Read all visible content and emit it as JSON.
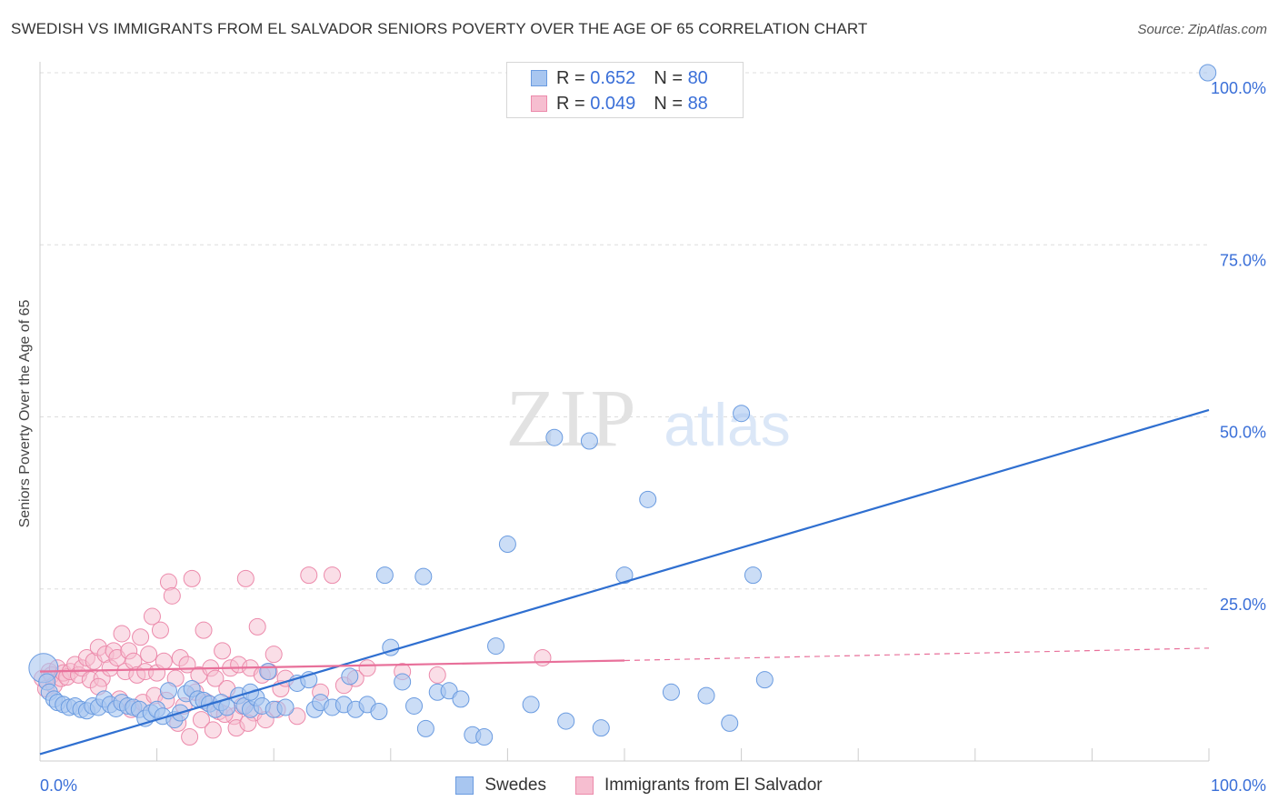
{
  "title": "SWEDISH VS IMMIGRANTS FROM EL SALVADOR SENIORS POVERTY OVER THE AGE OF 65 CORRELATION CHART",
  "source": "Source: ZipAtlas.com",
  "watermark": {
    "zip": "ZIP",
    "atlas": "atlas"
  },
  "legend_top": {
    "rows": [
      {
        "r_label": "R =",
        "r_value": "0.652",
        "n_label": "N =",
        "n_value": "80"
      },
      {
        "r_label": "R =",
        "r_value": "0.049",
        "n_label": "N =",
        "n_value": "88"
      }
    ]
  },
  "legend_bottom": {
    "swedes": "Swedes",
    "salvador": "Immigrants from El Salvador"
  },
  "colors": {
    "swedes_fill": "#a8c6f0",
    "swedes_stroke": "#6a9be0",
    "swedes_line": "#2f6fd0",
    "salvador_fill": "#f6bed0",
    "salvador_stroke": "#ec8aab",
    "salvador_line": "#e8709a",
    "tick_label": "#3a6fd8",
    "grid": "#dddddd"
  },
  "chart_data": {
    "type": "scatter",
    "title": "SWEDISH VS IMMIGRANTS FROM EL SALVADOR SENIORS POVERTY OVER THE AGE OF 65 CORRELATION CHART",
    "xlabel": "",
    "ylabel": "Seniors Poverty Over the Age of 65",
    "xlim": [
      0,
      100
    ],
    "ylim": [
      0,
      100
    ],
    "x_tick_labels": [
      "0.0%",
      "100.0%"
    ],
    "y_ticks": [
      25,
      50,
      75,
      100
    ],
    "y_tick_labels": [
      "25.0%",
      "50.0%",
      "75.0%",
      "100.0%"
    ],
    "series": [
      {
        "name": "Swedes",
        "r": 0.652,
        "n": 80,
        "trend": {
          "x": [
            0,
            100
          ],
          "y": [
            1,
            51
          ]
        },
        "points": [
          [
            0.3,
            13.5
          ],
          [
            0.6,
            11.5
          ],
          [
            0.8,
            10
          ],
          [
            1.2,
            9
          ],
          [
            1.5,
            8.5
          ],
          [
            2,
            8.2
          ],
          [
            2.5,
            7.8
          ],
          [
            3,
            8
          ],
          [
            3.5,
            7.5
          ],
          [
            4,
            7.3
          ],
          [
            4.5,
            8
          ],
          [
            5,
            7.8
          ],
          [
            5.5,
            9
          ],
          [
            6,
            8.2
          ],
          [
            6.5,
            7.6
          ],
          [
            7,
            8.5
          ],
          [
            7.5,
            8
          ],
          [
            8,
            7.8
          ],
          [
            8.5,
            7.5
          ],
          [
            9,
            6.2
          ],
          [
            9.5,
            7
          ],
          [
            10,
            7.5
          ],
          [
            10.5,
            6.5
          ],
          [
            11,
            10.2
          ],
          [
            11.5,
            6
          ],
          [
            12,
            7
          ],
          [
            12.5,
            9.8
          ],
          [
            13,
            10.5
          ],
          [
            13.5,
            9
          ],
          [
            14,
            8.8
          ],
          [
            14.5,
            8.3
          ],
          [
            15,
            7.5
          ],
          [
            15.5,
            8.5
          ],
          [
            16,
            7.8
          ],
          [
            17,
            9.5
          ],
          [
            17.5,
            8
          ],
          [
            18,
            7.5
          ],
          [
            18.5,
            9.2
          ],
          [
            19,
            8
          ],
          [
            19.5,
            13
          ],
          [
            20,
            7.5
          ],
          [
            21,
            7.8
          ],
          [
            22,
            11.3
          ],
          [
            23,
            11.8
          ],
          [
            23.5,
            7.5
          ],
          [
            24,
            8.5
          ],
          [
            25,
            7.8
          ],
          [
            26,
            8.2
          ],
          [
            26.5,
            12.3
          ],
          [
            27,
            7.5
          ],
          [
            28,
            8.2
          ],
          [
            29,
            7.2
          ],
          [
            30,
            16.5
          ],
          [
            31,
            11.5
          ],
          [
            32,
            8
          ],
          [
            33,
            4.7
          ],
          [
            34,
            10
          ],
          [
            35,
            10.2
          ],
          [
            36,
            9
          ],
          [
            37,
            3.8
          ],
          [
            38,
            3.5
          ],
          [
            39,
            16.7
          ],
          [
            40,
            31.5
          ],
          [
            42,
            8.2
          ],
          [
            44,
            47
          ],
          [
            45,
            5.8
          ],
          [
            47,
            46.5
          ],
          [
            50,
            27
          ],
          [
            52,
            38
          ],
          [
            54,
            10
          ],
          [
            57,
            9.5
          ],
          [
            59,
            5.5
          ],
          [
            60,
            50.5
          ],
          [
            61,
            27
          ],
          [
            62,
            11.8
          ],
          [
            99.9,
            100
          ],
          [
            29.5,
            27
          ],
          [
            32.8,
            26.8
          ],
          [
            18,
            10
          ],
          [
            48,
            4.8
          ]
        ]
      },
      {
        "name": "Immigrants from El Salvador",
        "r": 0.049,
        "n": 88,
        "trend": {
          "x": [
            0,
            50
          ],
          "y": [
            13,
            14.6
          ]
        },
        "trend_extension": {
          "x": [
            50,
            100
          ],
          "y": [
            14.6,
            16.4
          ]
        },
        "points": [
          [
            0.2,
            12
          ],
          [
            0.5,
            10.5
          ],
          [
            0.8,
            13
          ],
          [
            1,
            12.5
          ],
          [
            1.2,
            11
          ],
          [
            1.5,
            13.5
          ],
          [
            1.8,
            12
          ],
          [
            2,
            12.8
          ],
          [
            2.3,
            12.2
          ],
          [
            2.6,
            13
          ],
          [
            3,
            14
          ],
          [
            3.3,
            12.5
          ],
          [
            3.6,
            13.5
          ],
          [
            4,
            15
          ],
          [
            4.3,
            11.8
          ],
          [
            4.6,
            14.5
          ],
          [
            5,
            16.5
          ],
          [
            5.3,
            12
          ],
          [
            5.6,
            15.5
          ],
          [
            6,
            13.5
          ],
          [
            6.3,
            16
          ],
          [
            6.6,
            15
          ],
          [
            7,
            18.5
          ],
          [
            7.3,
            13
          ],
          [
            7.6,
            16
          ],
          [
            8,
            14.5
          ],
          [
            8.3,
            12.5
          ],
          [
            8.6,
            18
          ],
          [
            9,
            13
          ],
          [
            9.3,
            15.5
          ],
          [
            9.6,
            21
          ],
          [
            10,
            12.8
          ],
          [
            10.3,
            19
          ],
          [
            10.6,
            14.5
          ],
          [
            11,
            26
          ],
          [
            11.3,
            24
          ],
          [
            11.6,
            12
          ],
          [
            12,
            15
          ],
          [
            12.3,
            8
          ],
          [
            12.6,
            14
          ],
          [
            13,
            26.5
          ],
          [
            13.3,
            10
          ],
          [
            13.6,
            12.5
          ],
          [
            14,
            19
          ],
          [
            14.3,
            8.5
          ],
          [
            14.6,
            13.5
          ],
          [
            15,
            12
          ],
          [
            15.3,
            7.2
          ],
          [
            15.6,
            16
          ],
          [
            16,
            10.5
          ],
          [
            16.3,
            13.5
          ],
          [
            16.6,
            6.5
          ],
          [
            17,
            14
          ],
          [
            17.3,
            8
          ],
          [
            17.6,
            26.5
          ],
          [
            18,
            13.5
          ],
          [
            18.3,
            7
          ],
          [
            18.6,
            19.5
          ],
          [
            19,
            12.5
          ],
          [
            19.3,
            6
          ],
          [
            19.6,
            13
          ],
          [
            20,
            15.5
          ],
          [
            20.3,
            7.5
          ],
          [
            20.6,
            10.5
          ],
          [
            21,
            12
          ],
          [
            22,
            6.5
          ],
          [
            23,
            27
          ],
          [
            24,
            10
          ],
          [
            25,
            27
          ],
          [
            26,
            11
          ],
          [
            27,
            12
          ],
          [
            28,
            13.5
          ],
          [
            31,
            13
          ],
          [
            34,
            12.5
          ],
          [
            43,
            15
          ],
          [
            5,
            10.8
          ],
          [
            6.8,
            9
          ],
          [
            7.8,
            7.5
          ],
          [
            8.8,
            8.5
          ],
          [
            9.8,
            9.5
          ],
          [
            10.8,
            8.8
          ],
          [
            11.8,
            5.5
          ],
          [
            12.8,
            3.5
          ],
          [
            13.8,
            6
          ],
          [
            14.8,
            4.5
          ],
          [
            15.8,
            6.8
          ],
          [
            16.8,
            4.8
          ],
          [
            17.8,
            5.5
          ]
        ]
      }
    ]
  }
}
